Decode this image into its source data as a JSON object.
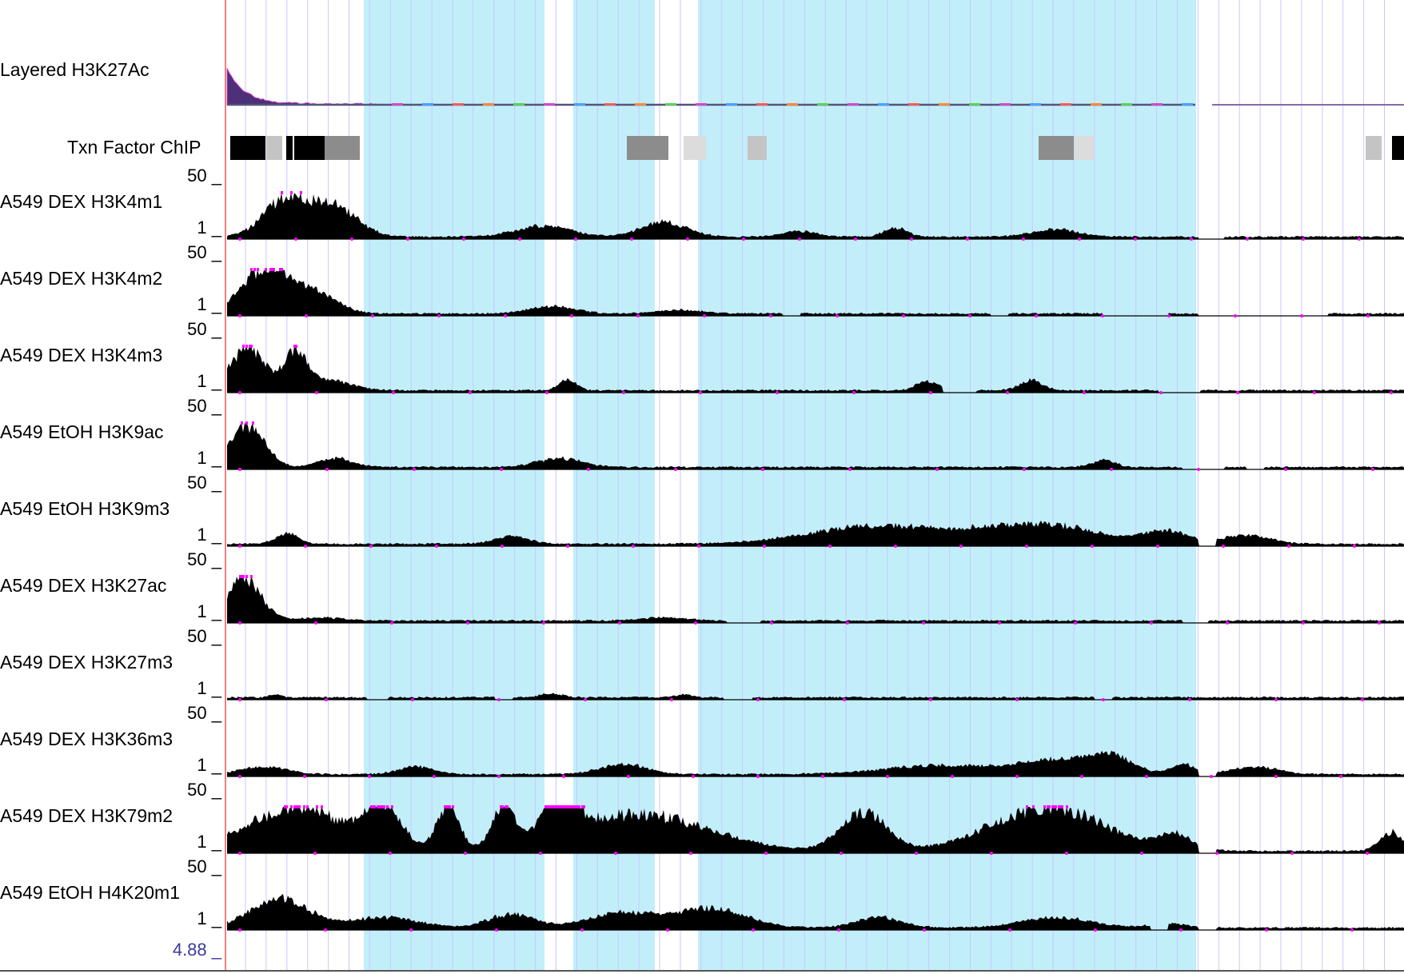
{
  "browser": {
    "colors": {
      "highlight": "#c2eefa",
      "gridline": "#c8c8ff",
      "left_border": "#f08080",
      "signal": "#000000",
      "clip_marker": "#ff00ff"
    },
    "layered_track": {
      "label": "Layered H3K27Ac"
    },
    "txn_factor_track": {
      "label": "Txn Factor ChIP",
      "clusters": [
        {
          "shade": "black"
        },
        {
          "shade": "light"
        },
        {
          "shade": "black"
        },
        {
          "shade": "black"
        },
        {
          "shade": "medium"
        },
        {
          "shade": "medium"
        },
        {
          "shade": "faint"
        },
        {
          "shade": "light"
        },
        {
          "shade": "medium"
        },
        {
          "shade": "faint"
        },
        {
          "shade": "light"
        },
        {
          "shade": "black"
        }
      ]
    },
    "signal_tracks": [
      {
        "label": "A549 DEX H3K4m1",
        "max_label": "50 _",
        "min_label": "1 _"
      },
      {
        "label": "A549 DEX H3K4m2",
        "max_label": "50 _",
        "min_label": "1 _"
      },
      {
        "label": "A549 DEX H3K4m3",
        "max_label": "50 _",
        "min_label": "1 _"
      },
      {
        "label": "A549 EtOH H3K9ac",
        "max_label": "50 _",
        "min_label": "1 _"
      },
      {
        "label": "A549 EtOH H3K9m3",
        "max_label": "50 _",
        "min_label": "1 _"
      },
      {
        "label": "A549 DEX H3K27ac",
        "max_label": "50 _",
        "min_label": "1 _"
      },
      {
        "label": "A549 DEX H3K27m3",
        "max_label": "50 _",
        "min_label": "1 _"
      },
      {
        "label": "A549 DEX H3K36m3",
        "max_label": "50 _",
        "min_label": "1 _"
      },
      {
        "label": "A549 DEX H3K79m2",
        "max_label": "50 _",
        "min_label": "1 _"
      },
      {
        "label": "A549 EtOH H4K20m1",
        "max_label": "50 _",
        "min_label": "1 _"
      }
    ],
    "bottom_scale_label": "4.88 _"
  }
}
